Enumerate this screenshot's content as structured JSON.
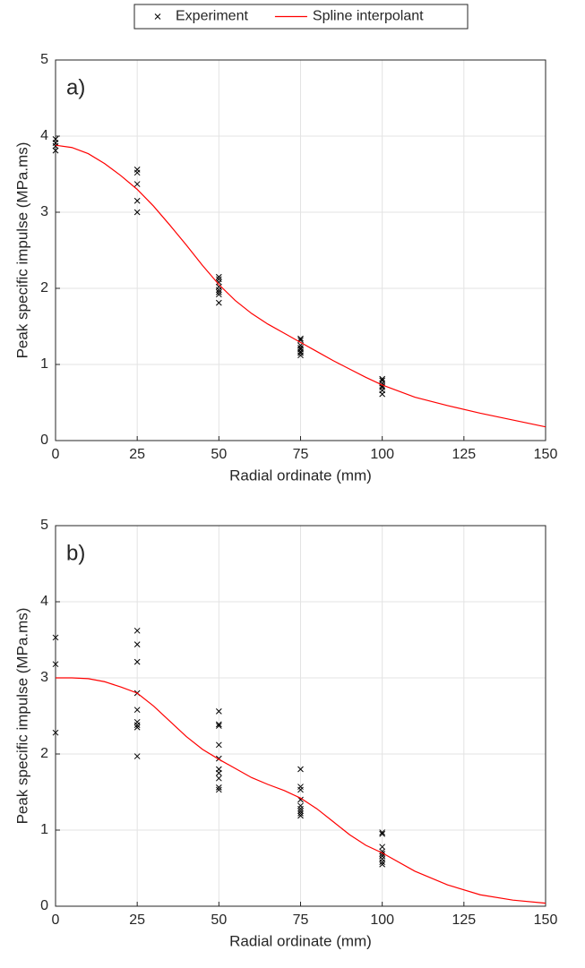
{
  "chart_data": [
    {
      "type": "scatter",
      "annotation": "a)",
      "xlabel": "Radial ordinate (mm)",
      "ylabel": "Peak specific impulse (MPa.ms)",
      "xlim": [
        0,
        150
      ],
      "xticks": [
        0,
        25,
        50,
        75,
        100,
        125,
        150
      ],
      "ylim": [
        0,
        5
      ],
      "yticks": [
        0,
        1,
        2,
        3,
        4,
        5
      ],
      "grid": true,
      "legend": "top",
      "series": [
        {
          "name": "Experiment",
          "type": "scatter",
          "color": "#000000",
          "x": [
            0,
            0,
            0,
            0,
            25,
            25,
            25,
            25,
            25,
            50,
            50,
            50,
            50,
            50,
            50,
            50,
            50,
            75,
            75,
            75,
            75,
            75,
            75,
            75,
            75,
            100,
            100,
            100,
            100,
            100,
            100,
            100
          ],
          "values": [
            3.96,
            3.91,
            3.87,
            3.81,
            3.56,
            3.52,
            3.37,
            3.15,
            3.0,
            2.15,
            2.12,
            2.08,
            2.02,
            1.98,
            1.95,
            1.92,
            1.81,
            1.34,
            1.32,
            1.25,
            1.22,
            1.2,
            1.17,
            1.15,
            1.12,
            0.81,
            0.79,
            0.75,
            0.72,
            0.7,
            0.66,
            0.61
          ]
        },
        {
          "name": "Spline interpolant",
          "type": "line",
          "color": "#ff0000",
          "x": [
            0,
            5,
            10,
            15,
            20,
            25,
            30,
            35,
            40,
            45,
            50,
            55,
            60,
            65,
            70,
            75,
            80,
            85,
            90,
            95,
            100,
            110,
            120,
            130,
            140,
            150
          ],
          "values": [
            3.88,
            3.85,
            3.77,
            3.64,
            3.48,
            3.3,
            3.08,
            2.83,
            2.57,
            2.3,
            2.05,
            1.84,
            1.67,
            1.53,
            1.41,
            1.29,
            1.17,
            1.05,
            0.94,
            0.83,
            0.73,
            0.57,
            0.46,
            0.36,
            0.27,
            0.18
          ]
        }
      ]
    },
    {
      "type": "scatter",
      "annotation": "b)",
      "xlabel": "Radial ordinate (mm)",
      "ylabel": "Peak specific impulse (MPa.ms)",
      "xlim": [
        0,
        150
      ],
      "xticks": [
        0,
        25,
        50,
        75,
        100,
        125,
        150
      ],
      "ylim": [
        0,
        5
      ],
      "yticks": [
        0,
        1,
        2,
        3,
        4,
        5
      ],
      "grid": true,
      "series": [
        {
          "type": "scatter",
          "color": "#000000",
          "x": [
            0,
            0,
            0,
            25,
            25,
            25,
            25,
            25,
            25,
            25,
            25,
            25,
            50,
            50,
            50,
            50,
            50,
            50,
            50,
            50,
            50,
            50,
            75,
            75,
            75,
            75,
            75,
            75,
            75,
            75,
            75,
            100,
            100,
            100,
            100,
            100,
            100,
            100,
            100,
            100
          ],
          "values": [
            3.53,
            3.18,
            2.28,
            3.62,
            3.44,
            3.21,
            2.8,
            2.58,
            2.42,
            2.38,
            2.35,
            1.97,
            2.56,
            2.39,
            2.37,
            2.12,
            1.94,
            1.8,
            1.75,
            1.68,
            1.56,
            1.53,
            1.8,
            1.57,
            1.53,
            1.4,
            1.32,
            1.28,
            1.25,
            1.22,
            1.19,
            0.97,
            0.95,
            0.78,
            0.72,
            0.69,
            0.66,
            0.62,
            0.58,
            0.55
          ]
        },
        {
          "type": "line",
          "color": "#ff0000",
          "x": [
            0,
            5,
            10,
            15,
            20,
            25,
            30,
            35,
            40,
            45,
            50,
            55,
            60,
            65,
            70,
            75,
            80,
            85,
            90,
            95,
            100,
            110,
            120,
            130,
            140,
            150
          ],
          "values": [
            3.0,
            3.0,
            2.99,
            2.95,
            2.88,
            2.8,
            2.63,
            2.43,
            2.23,
            2.06,
            1.93,
            1.81,
            1.69,
            1.6,
            1.52,
            1.42,
            1.28,
            1.11,
            0.94,
            0.8,
            0.7,
            0.46,
            0.28,
            0.15,
            0.08,
            0.04
          ]
        }
      ]
    }
  ]
}
